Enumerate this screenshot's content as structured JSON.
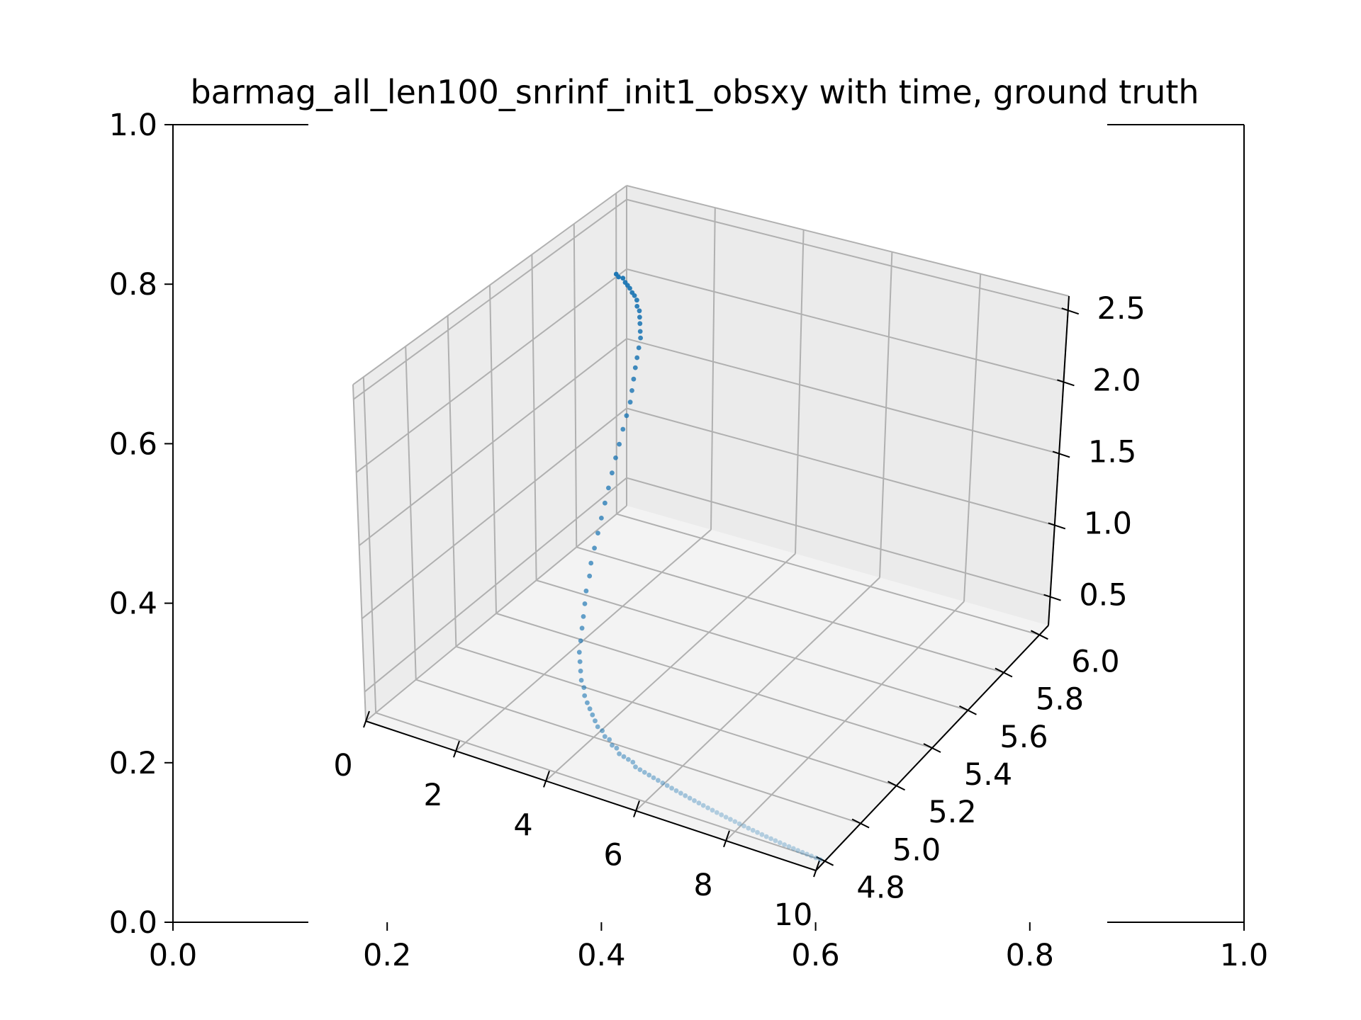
{
  "chart_data": {
    "type": "scatter",
    "title": "barmag_all_len100_snrinf_init1_obsxy with time, ground truth",
    "outer_axes": {
      "xticks": [
        "0.0",
        "0.2",
        "0.4",
        "0.6",
        "0.8",
        "1.0"
      ],
      "yticks": [
        "0.0",
        "0.2",
        "0.4",
        "0.6",
        "0.8",
        "1.0"
      ],
      "xlim": [
        0,
        1
      ],
      "ylim": [
        0,
        1
      ]
    },
    "axes3d": {
      "x_ticks": [
        "0",
        "2",
        "4",
        "6",
        "8",
        "10"
      ],
      "y_ticks": [
        "4.8",
        "5.0",
        "5.2",
        "5.4",
        "5.6",
        "5.8",
        "6.0"
      ],
      "z_ticks": [
        "0.5",
        "1.0",
        "1.5",
        "2.0",
        "2.5"
      ],
      "xlim": [
        0,
        10
      ],
      "ylim": [
        4.75,
        6.05
      ],
      "zlim": [
        0.3,
        2.6
      ],
      "grid": true
    },
    "series": [
      {
        "marker_color": "#1f77b4",
        "t": [
          0.0,
          0.1,
          0.2,
          0.3,
          0.4,
          0.5,
          0.6,
          0.7,
          0.8,
          0.9,
          1.0,
          1.1,
          1.2,
          1.3,
          1.4,
          1.5,
          1.6,
          1.7,
          1.8,
          1.9,
          2.0,
          2.1,
          2.2,
          2.3,
          2.4,
          2.5,
          2.6,
          2.7,
          2.8,
          2.9,
          3.0,
          3.1,
          3.2,
          3.3,
          3.4,
          3.5,
          3.6,
          3.7,
          3.8,
          3.9,
          4.0,
          4.1,
          4.2,
          4.3,
          4.4,
          4.5,
          4.6,
          4.7,
          4.8,
          4.9,
          5.0,
          5.1,
          5.2,
          5.3,
          5.4,
          5.5,
          5.6,
          5.7,
          5.8,
          5.9,
          6.0,
          6.1,
          6.2,
          6.3,
          6.4,
          6.5,
          6.6,
          6.7,
          6.8,
          6.9,
          7.0,
          7.1,
          7.2,
          7.3,
          7.4,
          7.5,
          7.6,
          7.7,
          7.8,
          7.9,
          8.0,
          8.1,
          8.2,
          8.3,
          8.4,
          8.5,
          8.6,
          8.7,
          8.8,
          8.9,
          9.0,
          9.1,
          9.2,
          9.3,
          9.4,
          9.5,
          9.6,
          9.7,
          9.8,
          9.9
        ],
        "x": [
          6.0,
          5.99,
          5.99,
          5.98,
          5.97,
          5.96,
          5.95,
          5.94,
          5.93,
          5.91,
          5.9,
          5.88,
          5.86,
          5.84,
          5.82,
          5.79,
          5.76,
          5.73,
          5.7,
          5.67,
          5.64,
          5.6,
          5.56,
          5.52,
          5.48,
          5.44,
          5.4,
          5.36,
          5.32,
          5.28,
          5.24,
          5.2,
          5.17,
          5.13,
          5.1,
          5.07,
          5.04,
          5.01,
          4.98,
          4.96,
          4.94,
          4.92,
          4.91,
          4.89,
          4.88,
          4.87,
          4.86,
          4.85,
          4.84,
          4.84,
          4.83,
          4.83,
          4.82,
          4.82,
          4.81,
          4.81,
          4.81,
          4.81,
          4.8,
          4.8,
          4.8,
          4.8,
          4.8,
          4.8,
          4.8,
          4.8,
          4.8,
          4.8,
          4.8,
          4.8,
          4.8,
          4.8,
          4.8,
          4.8,
          4.8,
          4.8,
          4.8,
          4.8,
          4.8,
          4.8,
          4.8,
          4.8,
          4.8,
          4.8,
          4.8,
          4.8,
          4.8,
          4.8,
          4.8,
          4.8,
          4.8,
          4.8,
          4.8,
          4.8,
          4.8,
          4.8,
          4.8,
          4.8,
          4.8,
          4.8
        ],
        "y": [
          2.02,
          2.02,
          2.02,
          2.01,
          2.01,
          2.01,
          2.0,
          2.0,
          1.99,
          1.98,
          1.97,
          1.96,
          1.95,
          1.93,
          1.92,
          1.9,
          1.88,
          1.86,
          1.83,
          1.8,
          1.77,
          1.74,
          1.71,
          1.67,
          1.64,
          1.6,
          1.56,
          1.52,
          1.48,
          1.44,
          1.4,
          1.36,
          1.32,
          1.28,
          1.24,
          1.2,
          1.17,
          1.13,
          1.1,
          1.07,
          1.04,
          1.01,
          0.98,
          0.96,
          0.93,
          0.91,
          0.89,
          0.87,
          0.85,
          0.83,
          0.81,
          0.8,
          0.78,
          0.77,
          0.75,
          0.74,
          0.73,
          0.72,
          0.71,
          0.7,
          0.69,
          0.68,
          0.67,
          0.66,
          0.65,
          0.64,
          0.63,
          0.62,
          0.61,
          0.6,
          0.59,
          0.58,
          0.57,
          0.56,
          0.55,
          0.54,
          0.53,
          0.52,
          0.51,
          0.5,
          0.49,
          0.48,
          0.47,
          0.46,
          0.45,
          0.44,
          0.43,
          0.42,
          0.41,
          0.4,
          0.39,
          0.38,
          0.37,
          0.36,
          0.35,
          0.34,
          0.33,
          0.32,
          0.31,
          0.3
        ]
      }
    ]
  }
}
